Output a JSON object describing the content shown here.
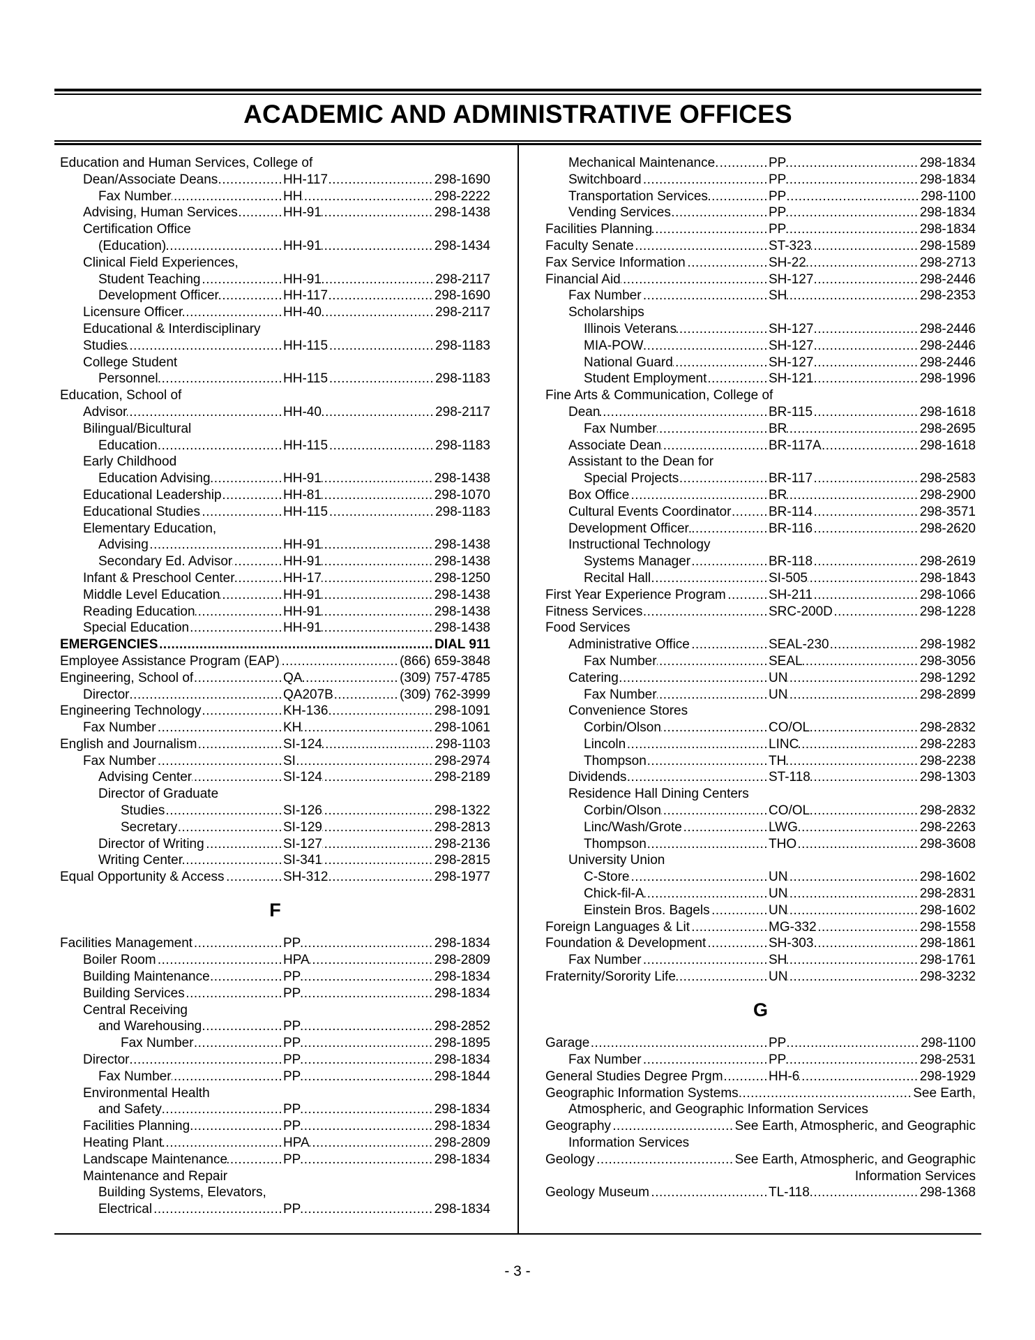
{
  "title": "ACADEMIC AND ADMINISTRATIVE OFFICES",
  "page_number": "- 3 -",
  "left_column": [
    {
      "type": "rows",
      "rows": [
        {
          "i": 0,
          "t": "Education and Human Services, College of"
        },
        {
          "i": 1,
          "t": "Dean/Associate Deans",
          "r": "HH-117",
          "p": "298-1690"
        },
        {
          "i": 2,
          "t": "Fax Number",
          "r": "HH",
          "p": "298-2222"
        },
        {
          "i": 1,
          "t": "Advising, Human Services",
          "r": "HH-91",
          "p": "298-1438"
        },
        {
          "i": 1,
          "t": "Certification Office"
        },
        {
          "i": 2,
          "t": "(Education)",
          "r": "HH-91",
          "p": "298-1434"
        },
        {
          "i": 1,
          "t": "Clinical Field Experiences,"
        },
        {
          "i": 2,
          "t": "Student Teaching",
          "r": "HH-91",
          "p": "298-2117"
        },
        {
          "i": 2,
          "t": "Development Officer",
          "r": "HH-117",
          "p": "298-1690"
        },
        {
          "i": 1,
          "t": "Licensure Officer",
          "r": "HH-40",
          "p": "298-2117"
        },
        {
          "i": 1,
          "t": "Educational & Interdisciplinary"
        },
        {
          "i": 1,
          "t": " Studies",
          "r": "HH-115",
          "p": "298-1183"
        },
        {
          "i": 1,
          "t": "College Student"
        },
        {
          "i": 2,
          "t": "Personnel",
          "r": "HH-115",
          "p": "298-1183"
        },
        {
          "i": 0,
          "t": "Education, School of"
        },
        {
          "i": 1,
          "t": "Advisor",
          "r": "HH-40",
          "p": "298-2117"
        },
        {
          "i": 1,
          "t": "Bilingual/Bicultural"
        },
        {
          "i": 2,
          "t": "Education",
          "r": "HH-115",
          "p": "298-1183"
        },
        {
          "i": 1,
          "t": "Early Childhood"
        },
        {
          "i": 2,
          "t": "Education Advising",
          "r": "HH-91",
          "p": "298-1438"
        },
        {
          "i": 1,
          "t": "Educational Leadership",
          "r": "HH-81",
          "p": "298-1070"
        },
        {
          "i": 1,
          "t": "Educational Studies",
          "r": "HH-115",
          "p": "298-1183"
        },
        {
          "i": 1,
          "t": "Elementary Education,"
        },
        {
          "i": 2,
          "t": "Advising",
          "r": "HH-91",
          "p": "298-1438"
        },
        {
          "i": 2,
          "t": "Secondary Ed. Advisor",
          "r": "HH-91",
          "p": "298-1438"
        },
        {
          "i": 1,
          "t": "Infant & Preschool Center",
          "r": "HH-17",
          "p": "298-1250"
        },
        {
          "i": 1,
          "t": "Middle Level Education",
          "r": "HH-91",
          "p": "298-1438"
        },
        {
          "i": 1,
          "t": "Reading Education",
          "r": "HH-91",
          "p": "298-1438"
        },
        {
          "i": 1,
          "t": "Special Education",
          "r": "HH-91",
          "p": "298-1438"
        },
        {
          "i": 0,
          "t": "EMERGENCIES",
          "p": "DIAL 911",
          "bold": true
        },
        {
          "i": 0,
          "t": "Employee Assistance Program (EAP)",
          "p": "(866) 659-3848"
        },
        {
          "i": 0,
          "t": "Engineering, School of",
          "r": "QA",
          "p": "(309) 757-4785"
        },
        {
          "i": 1,
          "t": "Director",
          "r": "QA207B",
          "p": "(309) 762-3999"
        },
        {
          "i": 0,
          "t": "Engineering Technology",
          "r": "KH-136",
          "p": "298-1091"
        },
        {
          "i": 1,
          "t": "Fax Number",
          "r": "KH",
          "p": "298-1061"
        },
        {
          "i": 0,
          "t": "English and Journalism",
          "r": "SI-124",
          "p": "298-1103"
        },
        {
          "i": 1,
          "t": "Fax Number",
          "r": "SI",
          "p": "298-2974"
        },
        {
          "i": 2,
          "t": "Advising Center",
          "r": "SI-124",
          "p": "298-2189"
        },
        {
          "i": 2,
          "t": "Director of Graduate"
        },
        {
          "i": 3,
          "t": "Studies",
          "r": "SI-126",
          "p": "298-1322"
        },
        {
          "i": 3,
          "t": "Secretary",
          "r": "SI-129",
          "p": "298-2813"
        },
        {
          "i": 2,
          "t": "Director of Writing",
          "r": "SI-127",
          "p": "298-2136"
        },
        {
          "i": 2,
          "t": "Writing Center",
          "r": "SI-341",
          "p": "298-2815"
        },
        {
          "i": 0,
          "t": "Equal Opportunity & Access",
          "r": "SH-312",
          "p": "298-1977"
        }
      ]
    },
    {
      "type": "section",
      "letter": "F"
    },
    {
      "type": "rows",
      "rows": [
        {
          "i": 0,
          "t": "Facilities Management",
          "r": "PP",
          "p": "298-1834"
        },
        {
          "i": 1,
          "t": "Boiler Room",
          "r": "HPA",
          "p": "298-2809"
        },
        {
          "i": 1,
          "t": "Building Maintenance",
          "r": "PP",
          "p": "298-1834"
        },
        {
          "i": 1,
          "t": "Building Services",
          "r": "PP",
          "p": "298-1834"
        },
        {
          "i": 1,
          "t": "Central Receiving"
        },
        {
          "i": 2,
          "t": "and Warehousing",
          "r": "PP",
          "p": "298-2852"
        },
        {
          "i": 3,
          "t": "Fax Number",
          "r": "PP",
          "p": "298-1895"
        },
        {
          "i": 1,
          "t": "Director",
          "r": "PP",
          "p": "298-1834"
        },
        {
          "i": 2,
          "t": "Fax Number",
          "r": "PP",
          "p": "298-1844"
        },
        {
          "i": 1,
          "t": "Environmental Health"
        },
        {
          "i": 2,
          "t": "and Safety",
          "r": "PP",
          "p": "298-1834"
        },
        {
          "i": 1,
          "t": "Facilities Planning",
          "r": "PP",
          "p": "298-1834"
        },
        {
          "i": 1,
          "t": "Heating Plant",
          "r": "HPA",
          "p": "298-2809"
        },
        {
          "i": 1,
          "t": "Landscape Maintenance",
          "r": "PP",
          "p": "298-1834"
        },
        {
          "i": 1,
          "t": "Maintenance and Repair"
        },
        {
          "i": 2,
          "t": "Building Systems, Elevators,"
        },
        {
          "i": 2,
          "t": "Electrical",
          "r": "PP",
          "p": "298-1834"
        }
      ]
    }
  ],
  "right_column": [
    {
      "type": "rows",
      "rows": [
        {
          "i": 1,
          "t": "Mechanical Maintenance.",
          "r": "PP",
          "p": "298-1834"
        },
        {
          "i": 1,
          "t": "Switchboard",
          "r": "PP",
          "p": "298-1834"
        },
        {
          "i": 1,
          "t": "Transportation Services",
          "r": "PP",
          "p": "298-1100"
        },
        {
          "i": 1,
          "t": "Vending Services",
          "r": "PP",
          "p": "298-1834"
        },
        {
          "i": 0,
          "t": "Facilities Planning",
          "r": "PP",
          "p": "298-1834"
        },
        {
          "i": 0,
          "t": "Faculty Senate",
          "r": "ST-323",
          "p": "298-1589"
        },
        {
          "i": 0,
          "t": "Fax Service Information",
          "r": "SH-22",
          "p": "298-2713"
        },
        {
          "i": 0,
          "t": "Financial Aid",
          "r": "SH-127",
          "p": "298-2446"
        },
        {
          "i": 1,
          "t": "Fax Number",
          "r": "SH",
          "p": "298-2353"
        },
        {
          "i": 1,
          "t": "Scholarships"
        },
        {
          "i": 2,
          "t": "Illinois Veterans",
          "r": "SH-127",
          "p": "298-2446"
        },
        {
          "i": 2,
          "t": "MIA-POW",
          "r": "SH-127",
          "p": "298-2446"
        },
        {
          "i": 2,
          "t": "National Guard",
          "r": "SH-127",
          "p": "298-2446"
        },
        {
          "i": 2,
          "t": "Student Employment",
          "r": "SH-121",
          "p": "298-1996"
        },
        {
          "i": 0,
          "t": "Fine Arts & Communication, College of"
        },
        {
          "i": 1,
          "t": "Dean",
          "r": "BR-115",
          "p": "298-1618"
        },
        {
          "i": 2,
          "t": "Fax Number",
          "r": "BR",
          "p": "298-2695"
        },
        {
          "i": 1,
          "t": "Associate Dean",
          "r": "BR-117A",
          "p": "298-1618"
        },
        {
          "i": 1,
          "t": "Assistant to the Dean for"
        },
        {
          "i": 2,
          "t": "Special Projects",
          "r": "BR-117",
          "p": "298-2583"
        },
        {
          "i": 1,
          "t": "Box Office",
          "r": "BR",
          "p": "298-2900"
        },
        {
          "i": 1,
          "t": "Cultural Events Coordinator",
          "r": "BR-114",
          "p": "298-3571"
        },
        {
          "i": 1,
          "t": "Development Officer.",
          "r": "BR-116",
          "p": "298-2620"
        },
        {
          "i": 1,
          "t": "Instructional Technology"
        },
        {
          "i": 2,
          "t": "Systems Manager",
          "r": "BR-118",
          "p": "298-2619"
        },
        {
          "i": 2,
          "t": "Recital Hall",
          "r": "SI-505",
          "p": "298-1843"
        },
        {
          "i": 0,
          "t": "First Year Experience Program",
          "r": "SH-211",
          "p": "298-1066"
        },
        {
          "i": 0,
          "t": "Fitness Services",
          "r": "SRC-200D",
          "p": "298-1228"
        },
        {
          "i": 0,
          "t": "Food Services"
        },
        {
          "i": 1,
          "t": "Administrative Office",
          "r": "SEAL-230",
          "p": "298-1982"
        },
        {
          "i": 2,
          "t": "Fax Number",
          "r": "SEAL",
          "p": "298-3056"
        },
        {
          "i": 1,
          "t": "Catering",
          "r": "UN",
          "p": "298-1292"
        },
        {
          "i": 2,
          "t": "Fax Number",
          "r": "UN",
          "p": "298-2899"
        },
        {
          "i": 1,
          "t": "Convenience Stores"
        },
        {
          "i": 2,
          "t": "Corbin/Olson",
          "r": "CO/OL",
          "p": "298-2832"
        },
        {
          "i": 2,
          "t": "Lincoln",
          "r": "LINC",
          "p": "298-2283"
        },
        {
          "i": 2,
          "t": "Thompson",
          "r": "TH",
          "p": "298-2238"
        },
        {
          "i": 1,
          "t": "Dividends",
          "r": "ST-118",
          "p": "298-1303"
        },
        {
          "i": 1,
          "t": "Residence Hall Dining Centers"
        },
        {
          "i": 2,
          "t": "Corbin/Olson",
          "r": "CO/OL",
          "p": "298-2832"
        },
        {
          "i": 2,
          "t": "Linc/Wash/Grote",
          "r": "LWG",
          "p": "298-2263"
        },
        {
          "i": 2,
          "t": "Thompson",
          "r": "THO",
          "p": "298-3608"
        },
        {
          "i": 1,
          "t": "University Union"
        },
        {
          "i": 2,
          "t": "C-Store",
          "r": "UN",
          "p": "298-1602"
        },
        {
          "i": 2,
          "t": "Chick-fil-A",
          "r": "UN",
          "p": "298-2831"
        },
        {
          "i": 2,
          "t": "Einstein Bros. Bagels",
          "r": "UN",
          "p": "298-1602"
        },
        {
          "i": 0,
          "t": "Foreign Languages & Lit",
          "r": "MG-332",
          "p": "298-1558"
        },
        {
          "i": 0,
          "t": "Foundation & Development",
          "r": "SH-303",
          "p": "298-1861"
        },
        {
          "i": 1,
          "t": "Fax Number",
          "r": "SH",
          "p": "298-1761"
        },
        {
          "i": 0,
          "t": "Fraternity/Sorority Life",
          "r": "UN",
          "p": "298-3232"
        }
      ]
    },
    {
      "type": "section",
      "letter": "G"
    },
    {
      "type": "rows",
      "rows": [
        {
          "i": 0,
          "t": "Garage",
          "r": "PP",
          "p": "298-1100"
        },
        {
          "i": 1,
          "t": "Fax Number",
          "r": "PP",
          "p": "298-2531"
        },
        {
          "i": 0,
          "t": "General Studies Degree Prgm",
          "r": "HH-6",
          "p": "298-1929"
        },
        {
          "i": 0,
          "t": "Geographic Information Systems",
          "p": "See Earth,"
        },
        {
          "i": 1,
          "t": "Atmospheric, and Geographic Information Services"
        },
        {
          "i": 0,
          "t": "Geography",
          "p": "See Earth, Atmospheric, and Geographic"
        },
        {
          "i": 1,
          "t": "Information Services"
        },
        {
          "i": 0,
          "t": "Geology",
          "p": "See Earth, Atmospheric, and Geographic"
        },
        {
          "i": 0,
          "t": "Information Services",
          "align": "right"
        },
        {
          "i": 0,
          "t": "Geology Museum",
          "r": "TL-118",
          "p": "298-1368"
        }
      ]
    }
  ]
}
